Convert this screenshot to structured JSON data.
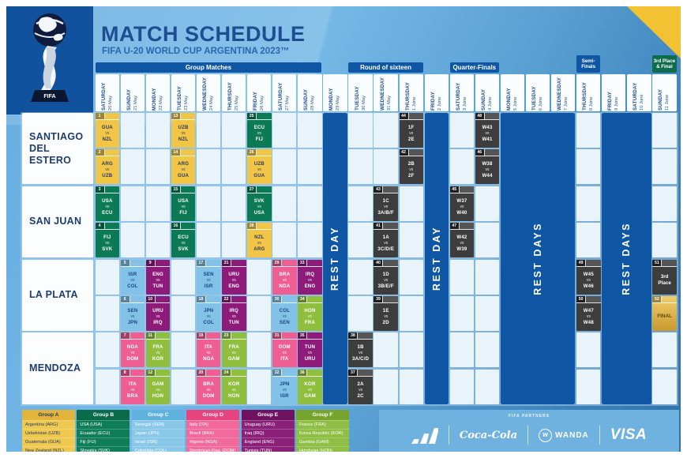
{
  "header": {
    "title": "MATCH SCHEDULE",
    "subtitle": "FIFA U-20 WORLD CUP ARGENTINA 2023™"
  },
  "ui": {
    "vs": "vs",
    "trophy_text": "FIFA"
  },
  "phases": [
    {
      "label": "Group Matches",
      "col": 0,
      "span": 9,
      "style": "blue",
      "tall": false
    },
    {
      "label": "Round of sixteen",
      "col": 10,
      "span": 3,
      "style": "blue",
      "tall": false
    },
    {
      "label": "Quarter-Finals",
      "col": 14,
      "span": 2,
      "style": "blue",
      "tall": false
    },
    {
      "label": "Semi-Finals",
      "lines": [
        "Semi-",
        "Finals"
      ],
      "col": 19,
      "span": 1,
      "style": "blue",
      "tall": true
    },
    {
      "label": "3rd Place & Final",
      "lines": [
        "3rd Place",
        "& Final"
      ],
      "col": 22,
      "span": 1,
      "style": "green",
      "tall": true
    }
  ],
  "columns": [
    {
      "day": "SATURDAY",
      "date": "20 May"
    },
    {
      "day": "SUNDAY",
      "date": "21 May"
    },
    {
      "day": "MONDAY",
      "date": "22 May"
    },
    {
      "day": "TUESDAY",
      "date": "23 May"
    },
    {
      "day": "WEDNESDAY",
      "date": "24 May"
    },
    {
      "day": "THURSDAY",
      "date": "25 May"
    },
    {
      "day": "FRIDAY",
      "date": "26 May"
    },
    {
      "day": "SATURDAY",
      "date": "27 May"
    },
    {
      "day": "SUNDAY",
      "date": "28 May"
    },
    {
      "day": "MONDAY",
      "date": "29 May"
    },
    {
      "day": "TUESDAY",
      "date": "30 May"
    },
    {
      "day": "WEDNESDAY",
      "date": "31 May"
    },
    {
      "day": "THURSDAY",
      "date": "1 June"
    },
    {
      "day": "FRIDAY",
      "date": "2 June"
    },
    {
      "day": "SATURDAY",
      "date": "3 June"
    },
    {
      "day": "SUNDAY",
      "date": "4 June"
    },
    {
      "day": "MONDAY",
      "date": "5 June"
    },
    {
      "day": "TUESDAY",
      "date": "6 June"
    },
    {
      "day": "WEDNESDAY",
      "date": "7 June"
    },
    {
      "day": "THURSDAY",
      "date": "8 June"
    },
    {
      "day": "FRIDAY",
      "date": "9 June"
    },
    {
      "day": "SATURDAY",
      "date": "10 June"
    },
    {
      "day": "SUNDAY",
      "date": "11 June"
    }
  ],
  "venues": [
    {
      "lines": [
        "SANTIAGO",
        "DEL ESTERO"
      ]
    },
    {
      "lines": [
        "SAN JUAN"
      ]
    },
    {
      "lines": [
        "LA PLATA"
      ]
    },
    {
      "lines": [
        "MENDOZA"
      ]
    }
  ],
  "rest_bands": [
    {
      "label": "REST DAY",
      "col": 9,
      "span": 1
    },
    {
      "label": "REST DAY",
      "col": 13,
      "span": 1
    },
    {
      "label": "REST DAYS",
      "col": 16,
      "span": 3
    },
    {
      "label": "REST DAYS",
      "col": 20,
      "span": 2
    }
  ],
  "matches": [
    {
      "n": 1,
      "col": 0,
      "row": 0,
      "g": "A",
      "home": "GUA",
      "away": "NZL"
    },
    {
      "n": 2,
      "col": 0,
      "row": 1,
      "g": "A",
      "home": "ARG",
      "away": "UZB"
    },
    {
      "n": 3,
      "col": 0,
      "row": 2,
      "g": "B",
      "home": "USA",
      "away": "ECU"
    },
    {
      "n": 4,
      "col": 0,
      "row": 3,
      "g": "B",
      "home": "FIJ",
      "away": "SVK"
    },
    {
      "n": 5,
      "col": 1,
      "row": 4,
      "g": "C",
      "home": "ISR",
      "away": "COL"
    },
    {
      "n": 6,
      "col": 1,
      "row": 5,
      "g": "C",
      "home": "SEN",
      "away": "JPN"
    },
    {
      "n": 7,
      "col": 1,
      "row": 6,
      "g": "D",
      "home": "NGA",
      "away": "DOM"
    },
    {
      "n": 8,
      "col": 1,
      "row": 7,
      "g": "D",
      "home": "ITA",
      "away": "BRA"
    },
    {
      "n": 9,
      "col": 2,
      "row": 4,
      "g": "E",
      "home": "ENG",
      "away": "TUN"
    },
    {
      "n": 10,
      "col": 2,
      "row": 5,
      "g": "E",
      "home": "URU",
      "away": "IRQ"
    },
    {
      "n": 11,
      "col": 2,
      "row": 6,
      "g": "F",
      "home": "FRA",
      "away": "KOR"
    },
    {
      "n": 12,
      "col": 2,
      "row": 7,
      "g": "F",
      "home": "GAM",
      "away": "HON"
    },
    {
      "n": 13,
      "col": 3,
      "row": 0,
      "g": "A",
      "home": "UZB",
      "away": "NZL"
    },
    {
      "n": 14,
      "col": 3,
      "row": 1,
      "g": "A",
      "home": "ARG",
      "away": "GUA"
    },
    {
      "n": 15,
      "col": 3,
      "row": 2,
      "g": "B",
      "home": "USA",
      "away": "FIJ"
    },
    {
      "n": 16,
      "col": 3,
      "row": 3,
      "g": "B",
      "home": "ECU",
      "away": "SVK"
    },
    {
      "n": 17,
      "col": 4,
      "row": 4,
      "g": "C",
      "home": "SEN",
      "away": "ISR"
    },
    {
      "n": 18,
      "col": 4,
      "row": 5,
      "g": "C",
      "home": "JPN",
      "away": "COL"
    },
    {
      "n": 19,
      "col": 4,
      "row": 6,
      "g": "D",
      "home": "ITA",
      "away": "NGA"
    },
    {
      "n": 20,
      "col": 4,
      "row": 7,
      "g": "D",
      "home": "BRA",
      "away": "DOM"
    },
    {
      "n": 21,
      "col": 5,
      "row": 4,
      "g": "E",
      "home": "URU",
      "away": "ENG"
    },
    {
      "n": 22,
      "col": 5,
      "row": 5,
      "g": "E",
      "home": "IRQ",
      "away": "TUN"
    },
    {
      "n": 23,
      "col": 5,
      "row": 6,
      "g": "F",
      "home": "FRA",
      "away": "GAM"
    },
    {
      "n": 24,
      "col": 5,
      "row": 7,
      "g": "F",
      "home": "KOR",
      "away": "HON"
    },
    {
      "n": 25,
      "col": 6,
      "row": 0,
      "g": "B",
      "home": "ECU",
      "away": "FIJ"
    },
    {
      "n": 26,
      "col": 6,
      "row": 1,
      "g": "A",
      "home": "UZB",
      "away": "GUA"
    },
    {
      "n": 27,
      "col": 6,
      "row": 2,
      "g": "B",
      "home": "SVK",
      "away": "USA"
    },
    {
      "n": 28,
      "col": 6,
      "row": 3,
      "g": "A",
      "home": "NZL",
      "away": "ARG"
    },
    {
      "n": 29,
      "col": 7,
      "row": 4,
      "g": "D",
      "home": "BRA",
      "away": "NGA"
    },
    {
      "n": 30,
      "col": 7,
      "row": 5,
      "g": "C",
      "home": "COL",
      "away": "SEN"
    },
    {
      "n": 31,
      "col": 7,
      "row": 6,
      "g": "D",
      "home": "DOM",
      "away": "ITA"
    },
    {
      "n": 32,
      "col": 7,
      "row": 7,
      "g": "C",
      "home": "JPN",
      "away": "ISR"
    },
    {
      "n": 33,
      "col": 8,
      "row": 4,
      "g": "E",
      "home": "IRQ",
      "away": "ENG"
    },
    {
      "n": 34,
      "col": 8,
      "row": 5,
      "g": "F",
      "home": "HON",
      "away": "FRA"
    },
    {
      "n": 35,
      "col": 8,
      "row": 6,
      "g": "E",
      "home": "TUN",
      "away": "URU"
    },
    {
      "n": 36,
      "col": 8,
      "row": 7,
      "g": "F",
      "home": "KOR",
      "away": "GAM"
    },
    {
      "n": 37,
      "col": 10,
      "row": 7,
      "g": "K",
      "home": "2A",
      "away": "2C"
    },
    {
      "n": 38,
      "col": 10,
      "row": 6,
      "g": "K",
      "home": "1B",
      "away": "3A/C/D"
    },
    {
      "n": 39,
      "col": 11,
      "row": 5,
      "g": "K",
      "home": "1E",
      "away": "2D"
    },
    {
      "n": 40,
      "col": 11,
      "row": 4,
      "g": "K",
      "home": "1D",
      "away": "3B/E/F"
    },
    {
      "n": 41,
      "col": 11,
      "row": 3,
      "g": "K",
      "home": "1A",
      "away": "3C/D/E"
    },
    {
      "n": 42,
      "col": 12,
      "row": 1,
      "g": "K",
      "home": "2B",
      "away": "2F"
    },
    {
      "n": 43,
      "col": 11,
      "row": 2,
      "g": "K",
      "home": "1C",
      "away": "3A/B/F"
    },
    {
      "n": 44,
      "col": 12,
      "row": 0,
      "g": "K",
      "home": "1F",
      "away": "2E"
    },
    {
      "n": 45,
      "col": 14,
      "row": 2,
      "g": "K",
      "home": "W37",
      "away": "W40"
    },
    {
      "n": 46,
      "col": 15,
      "row": 1,
      "g": "K",
      "home": "W38",
      "away": "W44"
    },
    {
      "n": 47,
      "col": 14,
      "row": 3,
      "g": "K",
      "home": "W42",
      "away": "W39"
    },
    {
      "n": 48,
      "col": 15,
      "row": 0,
      "g": "K",
      "home": "W43",
      "away": "W41"
    },
    {
      "n": 49,
      "col": 19,
      "row": 4,
      "g": "K",
      "home": "W45",
      "away": "W46"
    },
    {
      "n": 50,
      "col": 19,
      "row": 5,
      "g": "K",
      "home": "W47",
      "away": "W48"
    },
    {
      "n": 51,
      "col": 22,
      "row": 4,
      "g": "T",
      "label": "3rd\nPlace"
    },
    {
      "n": 52,
      "col": 22,
      "row": 5,
      "g": "G",
      "label": "FINAL"
    }
  ],
  "legend": [
    {
      "name": "Group A",
      "head": "#E3B33C",
      "body": "#EFC94F",
      "text": "#243B63",
      "teams": [
        "Argentina (ARG)",
        "Uzbekistan (UZB)",
        "Guatemala (GUA)",
        "New Zealand (NZL)"
      ]
    },
    {
      "name": "Group B",
      "head": "#0A6B4A",
      "body": "#0E7D58",
      "text": "#FFFFFF",
      "teams": [
        "USA (USA)",
        "Ecuador (ECU)",
        "Fiji (FIJ)",
        "Slovakia (SVK)"
      ]
    },
    {
      "name": "Group C",
      "head": "#5FB1DE",
      "body": "#8AC8EA",
      "text": "#FFFFFF",
      "teams": [
        "Senegal (SEN)",
        "Japan (JPN)",
        "Israel (ISR)",
        "Colombia (COL)"
      ]
    },
    {
      "name": "Group D",
      "head": "#E7447F",
      "body": "#F26A9B",
      "text": "#FFFFFF",
      "teams": [
        "Italy (ITA)",
        "Brazil (BRA)",
        "Nigeria (NGA)",
        "Dominican Rep. (DOM)"
      ]
    },
    {
      "name": "Group E",
      "head": "#6E1161",
      "body": "#8A2077",
      "text": "#FFFFFF",
      "teams": [
        "Uruguay (URU)",
        "Iraq (IRQ)",
        "England (ENG)",
        "Tunisia (TUN)"
      ]
    },
    {
      "name": "Group F",
      "head": "#76A42C",
      "body": "#8FBE44",
      "text": "#FFFFFF",
      "teams": [
        "France (FRA)",
        "Korea Republic (KOR)",
        "Gambia (GAM)",
        "Honduras (HON)"
      ]
    }
  ],
  "partners": {
    "label": "FIFA PARTNERS",
    "logos": [
      "adidas",
      "Coca-Cola",
      "WANDA",
      "VISA"
    ]
  },
  "colors": {
    "band_blue": "#0F56A4",
    "band_green": "#0E6B4E",
    "group_a": "#F1C545",
    "group_b": "#0C7A54",
    "group_c": "#82C2E8",
    "group_d": "#EF5E92",
    "group_e": "#8E1B79",
    "group_f": "#90BE3E",
    "knockout": "#3D3D3D",
    "final_gold": "#D9AC45",
    "accent_yellow": "#F2C233"
  }
}
